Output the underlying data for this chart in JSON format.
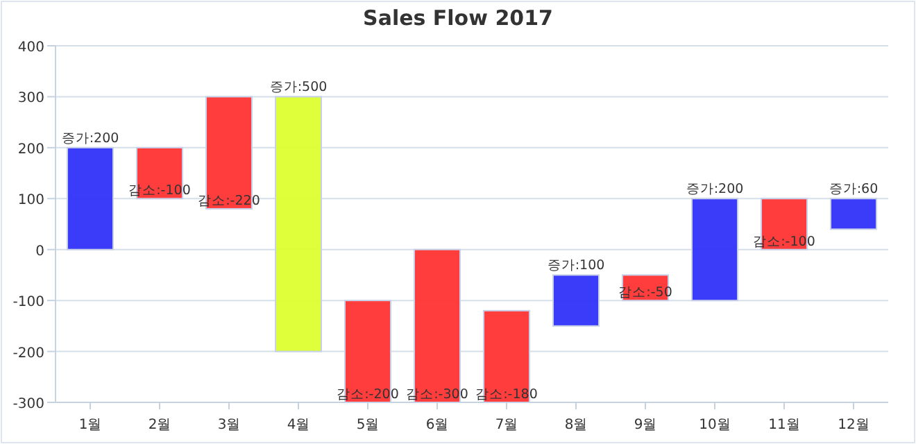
{
  "chart_data": {
    "type": "bar",
    "title": "Sales Flow 2017",
    "categories": [
      "1월",
      "2월",
      "3월",
      "4월",
      "5월",
      "6월",
      "7월",
      "8월",
      "9월",
      "10월",
      "11월",
      "12월"
    ],
    "base": [
      0,
      200,
      300,
      -200,
      -100,
      0,
      -120,
      -150,
      -50,
      -100,
      100,
      40
    ],
    "values": [
      200,
      -100,
      -220,
      500,
      -200,
      -300,
      -180,
      100,
      -50,
      200,
      -100,
      60
    ],
    "colors": [
      "#3030fa",
      "#ff3333",
      "#ff3333",
      "#dcff2e",
      "#ff3333",
      "#ff3333",
      "#ff3333",
      "#3030fa",
      "#ff3333",
      "#3030fa",
      "#ff3333",
      "#3030fa"
    ],
    "value_labels": [
      "증가:200",
      "감소:-100",
      "감소:-220",
      "증가:500",
      "감소:-200",
      "감소:-300",
      "감소:-180",
      "증가:100",
      "감소:-50",
      "증가:200",
      "감소:-100",
      "증가:60"
    ],
    "ylim": [
      -300,
      400
    ],
    "yticks": [
      -300,
      -200,
      -100,
      0,
      100,
      200,
      300,
      400
    ],
    "grid": "y"
  }
}
